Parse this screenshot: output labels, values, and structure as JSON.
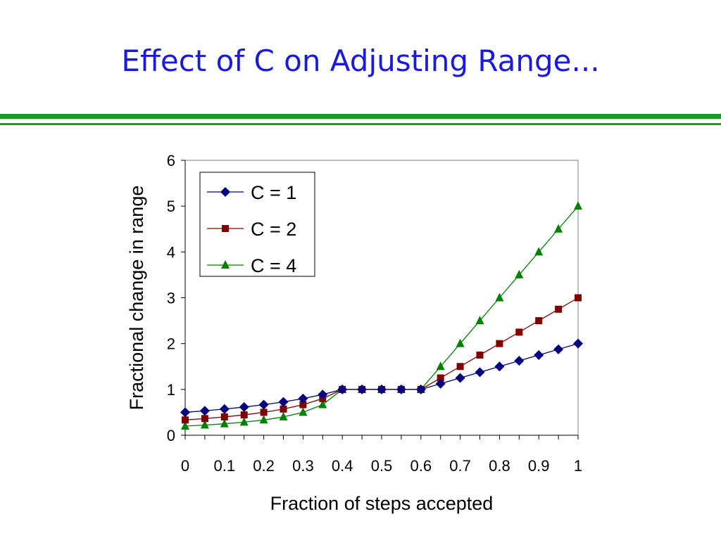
{
  "title": "Effect of C on Adjusting Range...",
  "colors": {
    "title": "#1a1adc",
    "rule": "#1e9a1e"
  },
  "chart_data": {
    "type": "line",
    "title": "",
    "xlabel": "Fraction of steps accepted",
    "ylabel": "Fractional change in range",
    "xlim": [
      0,
      1
    ],
    "ylim": [
      0,
      6
    ],
    "xticks": [
      "0",
      "0.1",
      "0.2",
      "0.3",
      "0.4",
      "0.5",
      "0.6",
      "0.7",
      "0.8",
      "0.9",
      "1"
    ],
    "yticks": [
      "0",
      "1",
      "2",
      "3",
      "4",
      "5",
      "6"
    ],
    "grid": false,
    "legend_placement": "top-left",
    "x": [
      0,
      0.05,
      0.1,
      0.15,
      0.2,
      0.25,
      0.3,
      0.35,
      0.4,
      0.45,
      0.5,
      0.55,
      0.6,
      0.65,
      0.7,
      0.75,
      0.8,
      0.85,
      0.9,
      0.95,
      1
    ],
    "series": [
      {
        "name": "C = 1",
        "color": "#000080",
        "marker": "diamond",
        "values": [
          0.5,
          0.533,
          0.571,
          0.615,
          0.667,
          0.727,
          0.8,
          0.889,
          1,
          1,
          1,
          1,
          1,
          1.125,
          1.25,
          1.375,
          1.5,
          1.625,
          1.75,
          1.875,
          2
        ]
      },
      {
        "name": "C = 2",
        "color": "#800000",
        "marker": "square",
        "values": [
          0.333,
          0.364,
          0.4,
          0.444,
          0.5,
          0.571,
          0.667,
          0.8,
          1,
          1,
          1,
          1,
          1,
          1.25,
          1.5,
          1.75,
          2,
          2.25,
          2.5,
          2.75,
          3
        ]
      },
      {
        "name": "C = 4",
        "color": "#008000",
        "marker": "triangle",
        "values": [
          0.2,
          0.222,
          0.25,
          0.286,
          0.333,
          0.4,
          0.5,
          0.667,
          1,
          1,
          1,
          1,
          1,
          1.5,
          2,
          2.5,
          3,
          3.5,
          4,
          4.5,
          5
        ]
      }
    ]
  }
}
